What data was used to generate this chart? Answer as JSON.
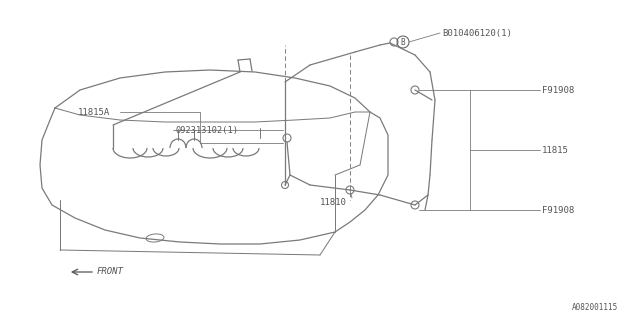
{
  "bg_color": "#ffffff",
  "line_color": "#7a7a7a",
  "text_color": "#555555",
  "diagram_id": "A082001115",
  "lw_main": 0.9,
  "lw_thin": 0.6,
  "labels": {
    "front": "FRONT",
    "part1": "11815A",
    "part2": "092313102(1)",
    "part3": "B010406120(1)",
    "part4": "F91908",
    "part5": "F91908",
    "part6": "11815",
    "part7": "11810"
  }
}
